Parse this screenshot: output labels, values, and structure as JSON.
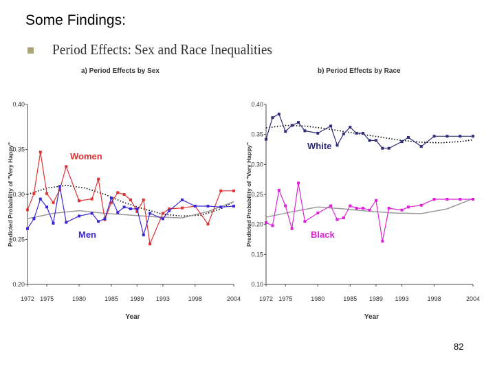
{
  "slide": {
    "title": "Some Findings:",
    "subheading": "Period Effects: Sex and Race Inequalities",
    "page_number": "82"
  },
  "colors": {
    "women": "#e03030",
    "men": "#3a28d8",
    "white": "#2e2c78",
    "black": "#e020d8",
    "trend_dotted": "#000000",
    "trend_gray": "#999999",
    "axis": "#444444",
    "bullet": "#a9a47a"
  },
  "chart_data": [
    {
      "type": "line",
      "title": "a) Period Effects by Sex",
      "xlabel": "Year",
      "ylabel": "Predicted Probability of \"Very Happy\"",
      "x_tick_labels": [
        "1972",
        "1975",
        "1980",
        "1985",
        "1989",
        "1993",
        "1998",
        "2004"
      ],
      "y_tick_labels": [
        "0.40",
        "0.35",
        "0.30",
        "0.25",
        "0.20"
      ],
      "x": [
        1972,
        1973,
        1974,
        1975,
        1976,
        1977,
        1978,
        1980,
        1982,
        1983,
        1984,
        1985,
        1986,
        1987,
        1988,
        1989,
        1990,
        1991,
        1993,
        1994,
        1996,
        1998,
        2000,
        2002,
        2004
      ],
      "ylim": [
        0.2,
        0.4
      ],
      "series": [
        {
          "name": "Women",
          "label": "Women",
          "color": "#e03030",
          "values": [
            0.283,
            0.301,
            0.347,
            0.301,
            0.291,
            0.305,
            0.331,
            0.293,
            0.295,
            0.317,
            0.272,
            0.291,
            0.302,
            0.3,
            0.294,
            0.281,
            0.294,
            0.245,
            0.279,
            0.284,
            0.285,
            0.287,
            0.267,
            0.304,
            0.304
          ]
        },
        {
          "name": "Men",
          "label": "Men",
          "color": "#3a28d8",
          "values": [
            0.262,
            0.273,
            0.295,
            0.286,
            0.268,
            0.309,
            0.269,
            0.276,
            0.279,
            0.27,
            0.273,
            0.296,
            0.28,
            0.286,
            0.284,
            0.284,
            0.255,
            0.279,
            0.273,
            0.282,
            0.294,
            0.287,
            0.287,
            0.286,
            0.287
          ]
        }
      ],
      "trend_lines": [
        {
          "style": "dotted",
          "x": [
            1972,
            1975,
            1978,
            1981,
            1984,
            1987,
            1990,
            1993,
            1996,
            1999,
            2002,
            2004
          ],
          "values": [
            0.3,
            0.307,
            0.31,
            0.307,
            0.3,
            0.291,
            0.284,
            0.278,
            0.276,
            0.277,
            0.284,
            0.292
          ]
        },
        {
          "style": "solid-gray",
          "x": [
            1972,
            1976,
            1980,
            1984,
            1988,
            1992,
            1996,
            2000,
            2004
          ],
          "values": [
            0.273,
            0.279,
            0.282,
            0.279,
            0.277,
            0.275,
            0.274,
            0.281,
            0.292
          ]
        }
      ]
    },
    {
      "type": "line",
      "title": "b) Period Effects by Race",
      "xlabel": "Year",
      "ylabel": "Predicted Probability of \"Very Happy\"",
      "x_tick_labels": [
        "1972",
        "1975",
        "1980",
        "1985",
        "1989",
        "1993",
        "1998",
        "2004"
      ],
      "y_tick_labels": [
        "0.40",
        "0.35",
        "0.30",
        "0.25",
        "0.20",
        "0.15",
        "0.10"
      ],
      "x": [
        1972,
        1973,
        1974,
        1975,
        1976,
        1977,
        1978,
        1980,
        1982,
        1983,
        1984,
        1985,
        1986,
        1987,
        1988,
        1989,
        1990,
        1991,
        1993,
        1994,
        1996,
        1998,
        2000,
        2002,
        2004
      ],
      "ylim": [
        0.1,
        0.4
      ],
      "series": [
        {
          "name": "White",
          "label": "White",
          "color": "#2e2c78",
          "values": [
            0.342,
            0.378,
            0.384,
            0.355,
            0.365,
            0.37,
            0.356,
            0.352,
            0.364,
            0.332,
            0.351,
            0.362,
            0.352,
            0.352,
            0.34,
            0.34,
            0.327,
            0.327,
            0.338,
            0.345,
            0.33,
            0.347,
            0.347,
            0.347,
            0.347
          ]
        },
        {
          "name": "Black",
          "label": "Black",
          "color": "#e020d8",
          "values": [
            0.203,
            0.198,
            0.257,
            0.231,
            0.193,
            0.269,
            0.205,
            0.219,
            0.231,
            0.208,
            0.211,
            0.231,
            0.227,
            0.227,
            0.224,
            0.24,
            0.172,
            0.227,
            0.224,
            0.229,
            0.232,
            0.242,
            0.242,
            0.242,
            0.242
          ]
        }
      ],
      "trend_lines": [
        {
          "style": "dotted",
          "x": [
            1972,
            1975,
            1978,
            1981,
            1984,
            1987,
            1990,
            1993,
            1996,
            1999,
            2002,
            2004
          ],
          "values": [
            0.361,
            0.365,
            0.364,
            0.36,
            0.355,
            0.35,
            0.345,
            0.34,
            0.337,
            0.336,
            0.338,
            0.341
          ]
        },
        {
          "style": "solid-gray",
          "x": [
            1972,
            1976,
            1980,
            1984,
            1988,
            1992,
            1996,
            2000,
            2004
          ],
          "values": [
            0.212,
            0.221,
            0.229,
            0.226,
            0.222,
            0.219,
            0.218,
            0.226,
            0.243
          ]
        }
      ]
    }
  ]
}
